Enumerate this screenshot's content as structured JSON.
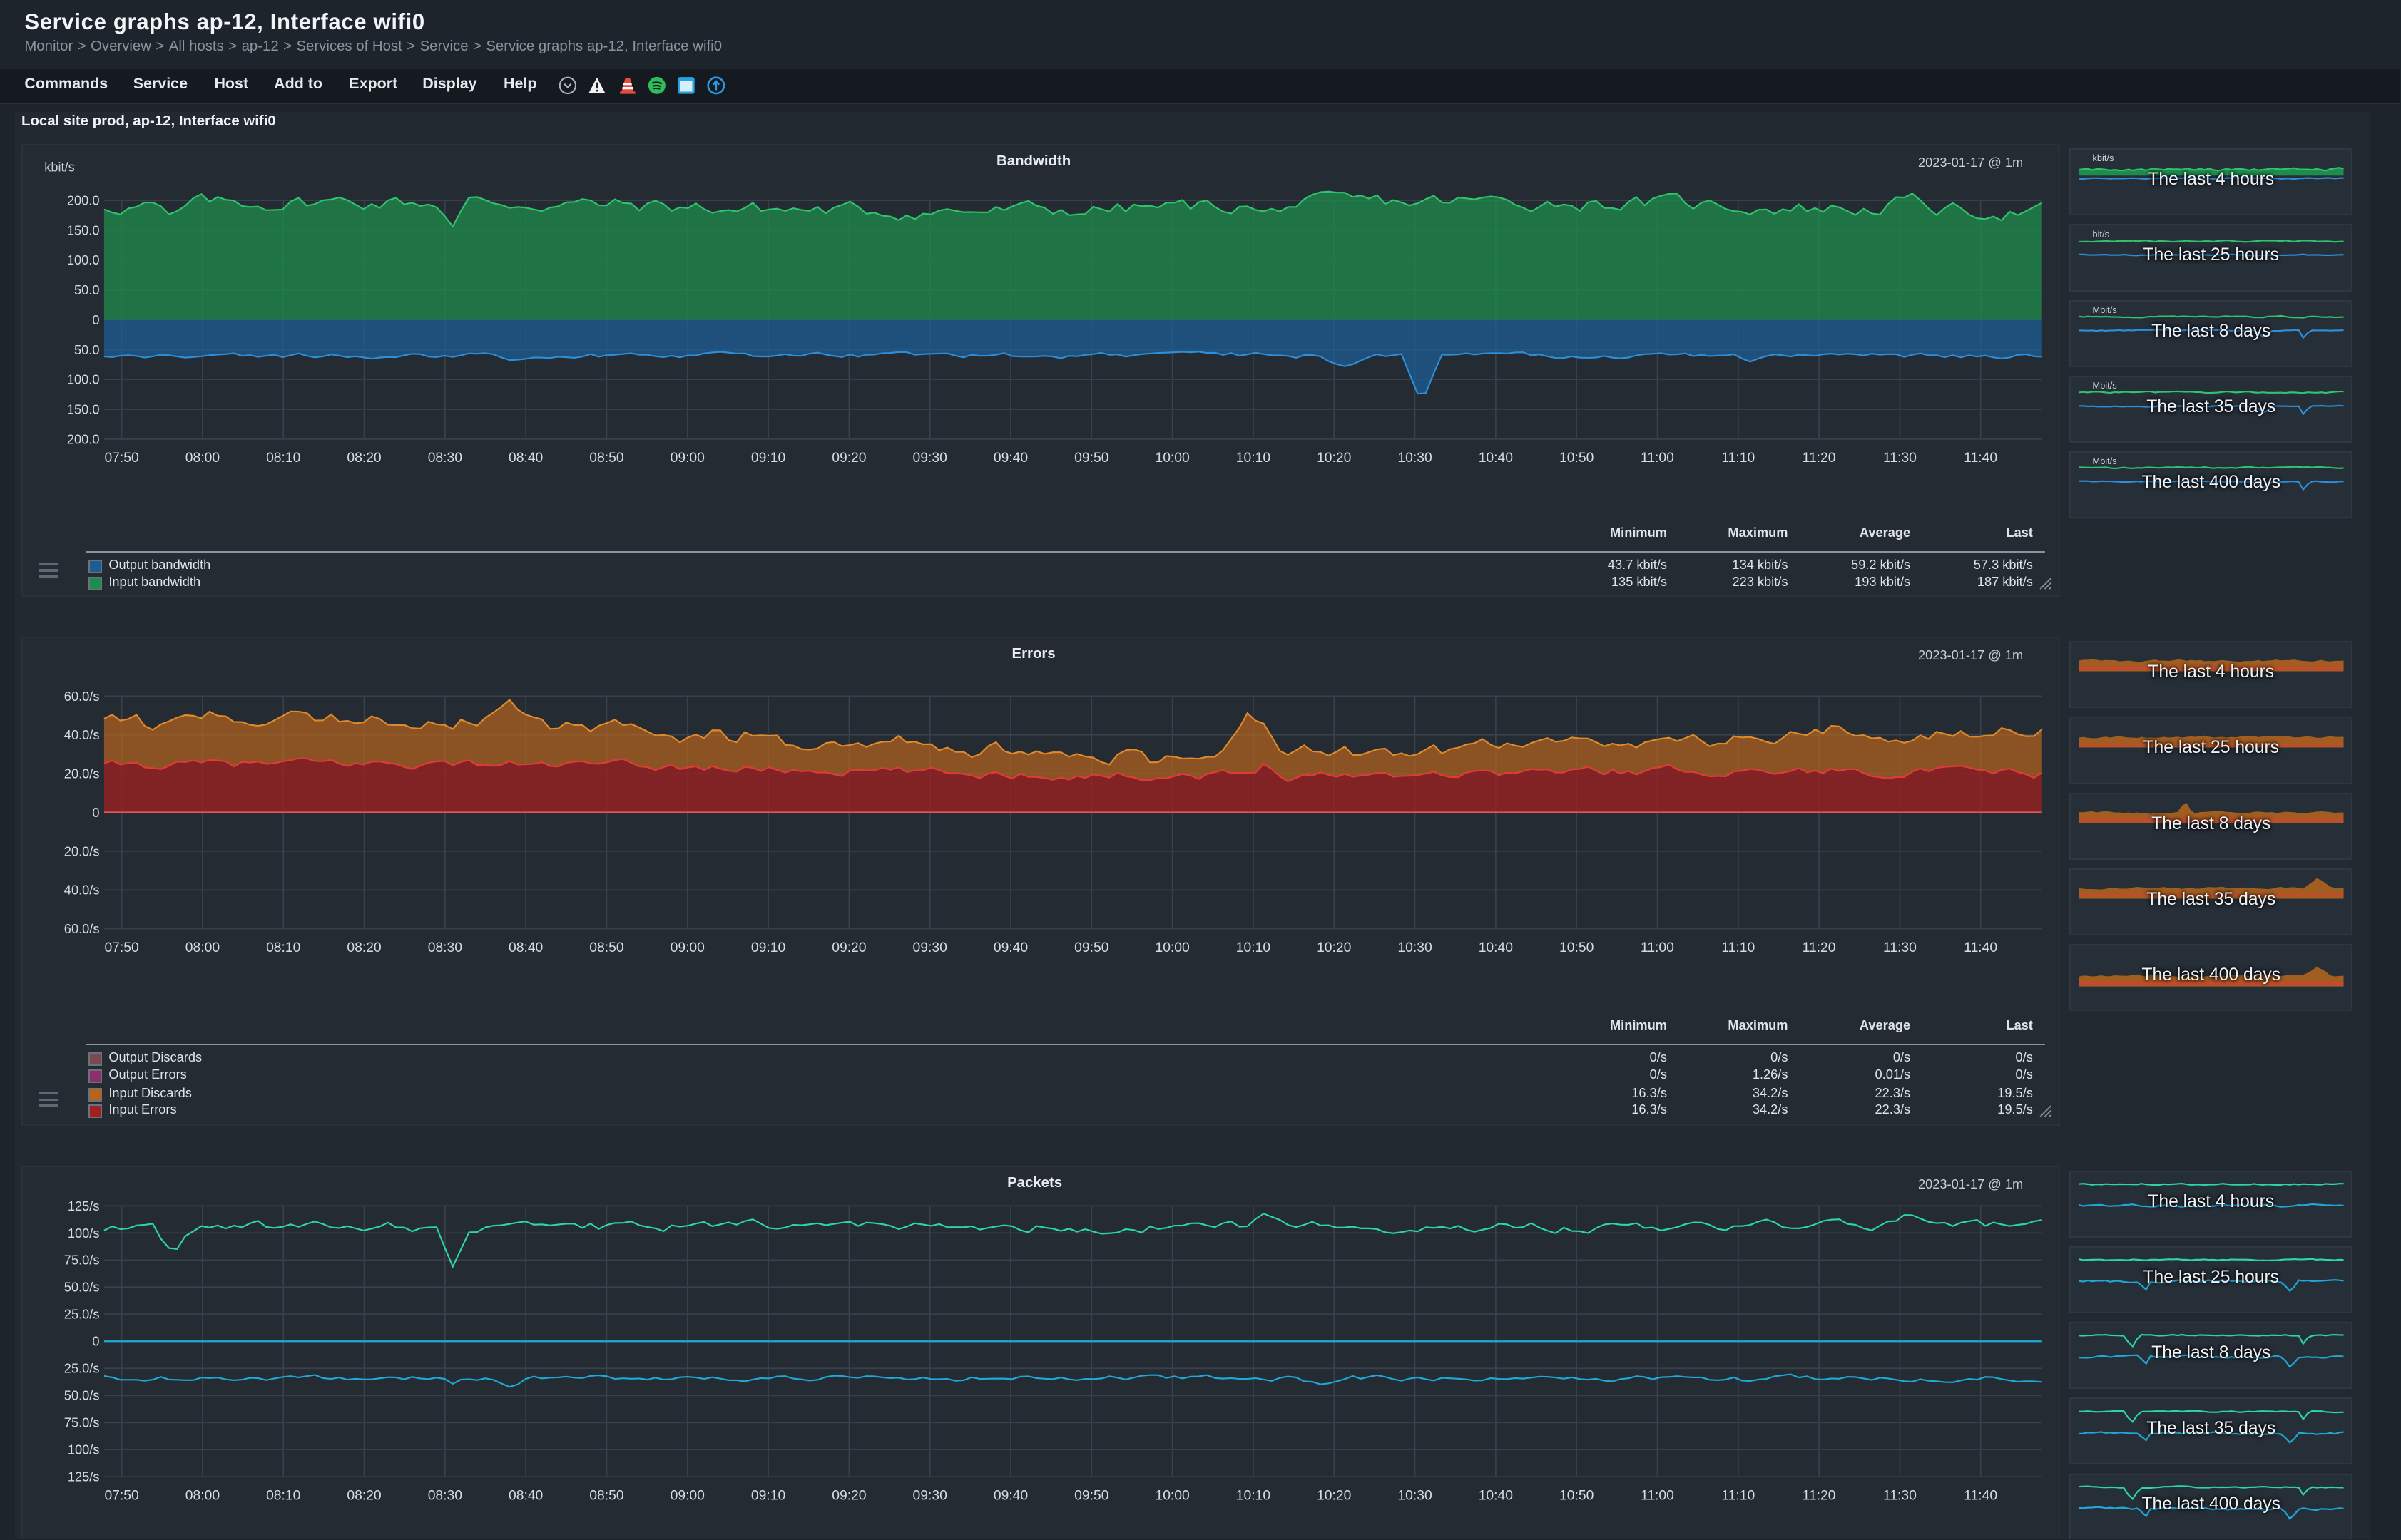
{
  "page": {
    "title": "Service graphs ap-12, Interface wifi0",
    "breadcrumb": [
      "Monitor",
      "Overview",
      "All hosts",
      "ap-12",
      "Services of Host",
      "Service",
      "Service graphs ap-12, Interface wifi0"
    ],
    "breadcrumb_sep": ">"
  },
  "menu": [
    "Commands",
    "Service",
    "Host",
    "Add to",
    "Export",
    "Display",
    "Help"
  ],
  "menu_icons": [
    "chevron-circle-icon",
    "warning-icon",
    "traffic-cone-icon",
    "spotify-icon",
    "window-icon",
    "info-circle-icon"
  ],
  "site_title": "Local site prod, ap-12, Interface wifi0",
  "colors": {
    "input_bandwidth": "#1e8c4c",
    "output_bandwidth": "#1c5e94",
    "input_discards": "#b8651c",
    "input_errors": "#a02020",
    "output_discards": "#7a4a4e",
    "output_errors": "#8c2f6a",
    "packets_in": "#2dd6a6",
    "packets_out": "#1fa9d8"
  },
  "time_axis": [
    "07:50",
    "08:00",
    "08:10",
    "08:20",
    "08:30",
    "08:40",
    "08:50",
    "09:00",
    "09:10",
    "09:20",
    "09:30",
    "09:40",
    "09:50",
    "10:00",
    "10:10",
    "10:20",
    "10:30",
    "10:40",
    "10:50",
    "11:00",
    "11:10",
    "11:20",
    "11:30",
    "11:40"
  ],
  "legend_headers": [
    "Minimum",
    "Maximum",
    "Average",
    "Last"
  ],
  "thumb_labels": [
    "The last 4 hours",
    "The last 25 hours",
    "The last 8 days",
    "The last 35 days",
    "The last 400 days"
  ],
  "graphs": {
    "bandwidth": {
      "title": "Bandwidth",
      "date": "2023-01-17 @ 1m",
      "unit": "kbit/s",
      "y_ticks": [
        "200.0",
        "150.0",
        "100.0",
        "50.0",
        "0",
        "50.0",
        "100.0",
        "150.0",
        "200.0"
      ],
      "legend": [
        {
          "name": "Output bandwidth",
          "color": "#1c5e94",
          "min": "43.7 kbit/s",
          "max": "134 kbit/s",
          "avg": "59.2 kbit/s",
          "last": "57.3 kbit/s"
        },
        {
          "name": "Input bandwidth",
          "color": "#1e8c4c",
          "min": "135 kbit/s",
          "max": "223 kbit/s",
          "avg": "193 kbit/s",
          "last": "187 kbit/s"
        }
      ],
      "thumb_units": [
        "kbit/s",
        "bit/s",
        "Mbit/s",
        "Mbit/s",
        "Mbit/s"
      ]
    },
    "errors": {
      "title": "Errors",
      "date": "2023-01-17 @ 1m",
      "y_ticks": [
        "60.0/s",
        "40.0/s",
        "20.0/s",
        "0",
        "20.0/s",
        "40.0/s",
        "60.0/s"
      ],
      "legend": [
        {
          "name": "Output Discards",
          "color": "#7a4a4e",
          "min": "0/s",
          "max": "0/s",
          "avg": "0/s",
          "last": "0/s"
        },
        {
          "name": "Output Errors",
          "color": "#8c2f6a",
          "min": "0/s",
          "max": "1.26/s",
          "avg": "0.01/s",
          "last": "0/s"
        },
        {
          "name": "Input Discards",
          "color": "#b8651c",
          "min": "16.3/s",
          "max": "34.2/s",
          "avg": "22.3/s",
          "last": "19.5/s"
        },
        {
          "name": "Input Errors",
          "color": "#a02020",
          "min": "16.3/s",
          "max": "34.2/s",
          "avg": "22.3/s",
          "last": "19.5/s"
        }
      ]
    },
    "packets": {
      "title": "Packets",
      "date": "2023-01-17 @ 1m",
      "y_ticks": [
        "125/s",
        "100/s",
        "75.0/s",
        "50.0/s",
        "25.0/s",
        "0",
        "25.0/s",
        "50.0/s",
        "75.0/s",
        "100/s",
        "125/s"
      ]
    }
  }
}
